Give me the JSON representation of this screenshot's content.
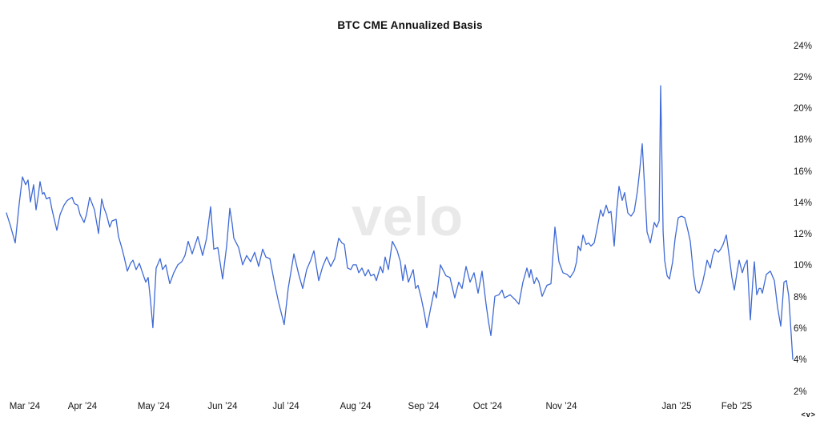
{
  "title": "BTC CME Annualized Basis",
  "watermark": "velo",
  "logo_mark": "<v>",
  "colors": {
    "line": "#3f6ad5",
    "title": "#0d0d0d",
    "axis_label": "#161616",
    "watermark": "#e9e9e9",
    "background": "#ffffff"
  },
  "chart_data": {
    "type": "line",
    "title": "BTC CME Annualized Basis",
    "grid": false,
    "legend": false,
    "y_axis": {
      "unit": "%",
      "min": 2,
      "max": 24,
      "tick_step": 2,
      "side": "right",
      "ticks": [
        {
          "label": "24%",
          "value": 24
        },
        {
          "label": "22%",
          "value": 22
        },
        {
          "label": "20%",
          "value": 20
        },
        {
          "label": "18%",
          "value": 18
        },
        {
          "label": "16%",
          "value": 16
        },
        {
          "label": "14%",
          "value": 14
        },
        {
          "label": "12%",
          "value": 12
        },
        {
          "label": "10%",
          "value": 10
        },
        {
          "label": "8%",
          "value": 8
        },
        {
          "label": "6%",
          "value": 6
        },
        {
          "label": "4%",
          "value": 4
        },
        {
          "label": "2%",
          "value": 2
        }
      ]
    },
    "x_axis": {
      "type": "time",
      "ticks": [
        {
          "label": "Mar ’24",
          "pos": 0.0234
        },
        {
          "label": "Apr ’24",
          "pos": 0.0967
        },
        {
          "label": "May ’24",
          "pos": 0.1874
        },
        {
          "label": "Jun ’24",
          "pos": 0.2749
        },
        {
          "label": "Jul ’24",
          "pos": 0.3554
        },
        {
          "label": "Aug ’24",
          "pos": 0.444
        },
        {
          "label": "Sep ’24",
          "pos": 0.5306
        },
        {
          "label": "Oct ’24",
          "pos": 0.612
        },
        {
          "label": "Nov ’24",
          "pos": 0.7057
        },
        {
          "label": "Jan ’25",
          "pos": 0.8523
        },
        {
          "label": "Feb ’25",
          "pos": 0.9287
        }
      ]
    },
    "series": [
      {
        "name": "BTC CME Annualized Basis",
        "color": "#3f6ad5",
        "points": [
          [
            0.0,
            13.4
          ],
          [
            0.0051,
            12.6
          ],
          [
            0.0112,
            11.5
          ],
          [
            0.0163,
            14.0
          ],
          [
            0.0204,
            15.7
          ],
          [
            0.0244,
            15.2
          ],
          [
            0.0275,
            15.5
          ],
          [
            0.0305,
            14.1
          ],
          [
            0.0346,
            15.2
          ],
          [
            0.0377,
            13.6
          ],
          [
            0.0407,
            14.6
          ],
          [
            0.0428,
            15.4
          ],
          [
            0.0458,
            14.6
          ],
          [
            0.0479,
            14.7
          ],
          [
            0.0509,
            14.3
          ],
          [
            0.055,
            14.4
          ],
          [
            0.058,
            13.6
          ],
          [
            0.0642,
            12.3
          ],
          [
            0.0682,
            13.3
          ],
          [
            0.0733,
            13.9
          ],
          [
            0.0774,
            14.2
          ],
          [
            0.0835,
            14.4
          ],
          [
            0.0866,
            14.0
          ],
          [
            0.0906,
            13.9
          ],
          [
            0.0937,
            13.3
          ],
          [
            0.0988,
            12.8
          ],
          [
            0.1018,
            13.3
          ],
          [
            0.1059,
            14.4
          ],
          [
            0.112,
            13.6
          ],
          [
            0.1171,
            12.1
          ],
          [
            0.1212,
            14.3
          ],
          [
            0.1242,
            13.7
          ],
          [
            0.1273,
            13.3
          ],
          [
            0.1314,
            12.5
          ],
          [
            0.1344,
            12.9
          ],
          [
            0.1395,
            13.0
          ],
          [
            0.1426,
            11.9
          ],
          [
            0.1466,
            11.2
          ],
          [
            0.1497,
            10.6
          ],
          [
            0.1538,
            9.7
          ],
          [
            0.1578,
            10.2
          ],
          [
            0.1609,
            10.4
          ],
          [
            0.165,
            9.8
          ],
          [
            0.169,
            10.2
          ],
          [
            0.1731,
            9.6
          ],
          [
            0.1772,
            9.0
          ],
          [
            0.1802,
            9.3
          ],
          [
            0.1833,
            7.8
          ],
          [
            0.1863,
            6.1
          ],
          [
            0.1904,
            9.9
          ],
          [
            0.1955,
            10.5
          ],
          [
            0.1986,
            9.8
          ],
          [
            0.2026,
            10.1
          ],
          [
            0.2077,
            8.9
          ],
          [
            0.2128,
            9.6
          ],
          [
            0.2179,
            10.1
          ],
          [
            0.223,
            10.3
          ],
          [
            0.2271,
            10.7
          ],
          [
            0.2312,
            11.6
          ],
          [
            0.2363,
            10.8
          ],
          [
            0.2434,
            11.9
          ],
          [
            0.2495,
            10.7
          ],
          [
            0.2546,
            11.8
          ],
          [
            0.2597,
            13.8
          ],
          [
            0.2637,
            11.1
          ],
          [
            0.2688,
            11.2
          ],
          [
            0.2749,
            9.2
          ],
          [
            0.28,
            11.3
          ],
          [
            0.2841,
            13.7
          ],
          [
            0.2872,
            12.7
          ],
          [
            0.2892,
            11.8
          ],
          [
            0.2953,
            11.2
          ],
          [
            0.3004,
            10.1
          ],
          [
            0.3055,
            10.7
          ],
          [
            0.3106,
            10.3
          ],
          [
            0.3157,
            10.9
          ],
          [
            0.3208,
            10.0
          ],
          [
            0.3259,
            11.1
          ],
          [
            0.3299,
            10.6
          ],
          [
            0.335,
            10.5
          ],
          [
            0.3411,
            8.9
          ],
          [
            0.3462,
            7.7
          ],
          [
            0.3533,
            6.3
          ],
          [
            0.3584,
            8.6
          ],
          [
            0.3656,
            10.8
          ],
          [
            0.3717,
            9.5
          ],
          [
            0.3768,
            8.6
          ],
          [
            0.3819,
            9.8
          ],
          [
            0.387,
            10.4
          ],
          [
            0.391,
            11.0
          ],
          [
            0.3971,
            9.1
          ],
          [
            0.4022,
            10.0
          ],
          [
            0.4073,
            10.6
          ],
          [
            0.4124,
            10.0
          ],
          [
            0.4175,
            10.5
          ],
          [
            0.4226,
            11.8
          ],
          [
            0.4267,
            11.5
          ],
          [
            0.4297,
            11.4
          ],
          [
            0.4338,
            9.9
          ],
          [
            0.4379,
            9.8
          ],
          [
            0.4409,
            10.1
          ],
          [
            0.445,
            10.1
          ],
          [
            0.4481,
            9.6
          ],
          [
            0.4521,
            9.9
          ],
          [
            0.4562,
            9.4
          ],
          [
            0.4603,
            9.8
          ],
          [
            0.4633,
            9.4
          ],
          [
            0.4674,
            9.5
          ],
          [
            0.4705,
            9.1
          ],
          [
            0.4756,
            10.0
          ],
          [
            0.4786,
            9.6
          ],
          [
            0.4817,
            10.6
          ],
          [
            0.4857,
            9.8
          ],
          [
            0.4908,
            11.6
          ],
          [
            0.4939,
            11.3
          ],
          [
            0.4969,
            11.0
          ],
          [
            0.501,
            10.3
          ],
          [
            0.5041,
            9.1
          ],
          [
            0.5071,
            10.1
          ],
          [
            0.5112,
            9.0
          ],
          [
            0.5143,
            9.4
          ],
          [
            0.5173,
            9.8
          ],
          [
            0.5204,
            8.6
          ],
          [
            0.5234,
            8.8
          ],
          [
            0.5275,
            8.0
          ],
          [
            0.5316,
            7.0
          ],
          [
            0.5346,
            6.1
          ],
          [
            0.5397,
            7.4
          ],
          [
            0.5438,
            8.4
          ],
          [
            0.5468,
            8.0
          ],
          [
            0.5519,
            10.1
          ],
          [
            0.556,
            9.7
          ],
          [
            0.5591,
            9.4
          ],
          [
            0.5641,
            9.3
          ],
          [
            0.5702,
            8.0
          ],
          [
            0.5753,
            9.0
          ],
          [
            0.5794,
            8.6
          ],
          [
            0.5845,
            10.0
          ],
          [
            0.5896,
            9.0
          ],
          [
            0.5947,
            9.6
          ],
          [
            0.5998,
            8.3
          ],
          [
            0.6049,
            9.7
          ],
          [
            0.61,
            7.6
          ],
          [
            0.613,
            6.5
          ],
          [
            0.6161,
            5.6
          ],
          [
            0.6212,
            8.1
          ],
          [
            0.6263,
            8.2
          ],
          [
            0.6303,
            8.5
          ],
          [
            0.6334,
            8.0
          ],
          [
            0.6405,
            8.2
          ],
          [
            0.6466,
            7.9
          ],
          [
            0.6517,
            7.6
          ],
          [
            0.6568,
            9.0
          ],
          [
            0.6619,
            9.9
          ],
          [
            0.665,
            9.3
          ],
          [
            0.667,
            9.8
          ],
          [
            0.6711,
            8.9
          ],
          [
            0.6741,
            9.3
          ],
          [
            0.6772,
            9.0
          ],
          [
            0.6813,
            8.1
          ],
          [
            0.6874,
            8.8
          ],
          [
            0.6925,
            8.9
          ],
          [
            0.6976,
            12.5
          ],
          [
            0.7026,
            10.3
          ],
          [
            0.7077,
            9.6
          ],
          [
            0.7128,
            9.5
          ],
          [
            0.7169,
            9.3
          ],
          [
            0.722,
            9.7
          ],
          [
            0.7251,
            10.3
          ],
          [
            0.7271,
            11.3
          ],
          [
            0.7301,
            11.0
          ],
          [
            0.7332,
            12.0
          ],
          [
            0.7373,
            11.4
          ],
          [
            0.7403,
            11.5
          ],
          [
            0.7434,
            11.3
          ],
          [
            0.7475,
            11.5
          ],
          [
            0.7515,
            12.5
          ],
          [
            0.7556,
            13.6
          ],
          [
            0.7587,
            13.2
          ],
          [
            0.7627,
            13.9
          ],
          [
            0.7658,
            13.4
          ],
          [
            0.7688,
            13.5
          ],
          [
            0.7729,
            11.3
          ],
          [
            0.776,
            13.5
          ],
          [
            0.779,
            15.1
          ],
          [
            0.7831,
            14.2
          ],
          [
            0.7862,
            14.7
          ],
          [
            0.7902,
            13.4
          ],
          [
            0.7943,
            13.2
          ],
          [
            0.7984,
            13.5
          ],
          [
            0.8024,
            14.8
          ],
          [
            0.8055,
            16.2
          ],
          [
            0.8086,
            17.8
          ],
          [
            0.8116,
            15.0
          ],
          [
            0.8147,
            12.2
          ],
          [
            0.8188,
            11.5
          ],
          [
            0.8239,
            12.8
          ],
          [
            0.8269,
            12.5
          ],
          [
            0.83,
            12.9
          ],
          [
            0.832,
            21.5
          ],
          [
            0.8351,
            12.2
          ],
          [
            0.8371,
            10.4
          ],
          [
            0.8402,
            9.4
          ],
          [
            0.8432,
            9.2
          ],
          [
            0.8473,
            10.3
          ],
          [
            0.8504,
            11.8
          ],
          [
            0.8544,
            13.1
          ],
          [
            0.8585,
            13.2
          ],
          [
            0.8626,
            13.1
          ],
          [
            0.8666,
            12.3
          ],
          [
            0.8697,
            11.6
          ],
          [
            0.8737,
            9.5
          ],
          [
            0.8768,
            8.5
          ],
          [
            0.8809,
            8.3
          ],
          [
            0.8849,
            8.9
          ],
          [
            0.888,
            9.6
          ],
          [
            0.891,
            10.4
          ],
          [
            0.8951,
            9.9
          ],
          [
            0.8982,
            10.7
          ],
          [
            0.9012,
            11.1
          ],
          [
            0.9053,
            10.9
          ],
          [
            0.9084,
            11.1
          ],
          [
            0.9114,
            11.4
          ],
          [
            0.9155,
            12.0
          ],
          [
            0.9196,
            10.5
          ],
          [
            0.9226,
            9.3
          ],
          [
            0.9257,
            8.5
          ],
          [
            0.9287,
            9.5
          ],
          [
            0.9318,
            10.4
          ],
          [
            0.9358,
            9.6
          ],
          [
            0.9389,
            10.1
          ],
          [
            0.942,
            10.4
          ],
          [
            0.946,
            6.6
          ],
          [
            0.9491,
            9.0
          ],
          [
            0.9511,
            10.3
          ],
          [
            0.9542,
            8.2
          ],
          [
            0.9572,
            8.6
          ],
          [
            0.9593,
            8.6
          ],
          [
            0.9613,
            8.3
          ],
          [
            0.9664,
            9.5
          ],
          [
            0.9715,
            9.7
          ],
          [
            0.9766,
            9.1
          ],
          [
            0.9807,
            7.4
          ],
          [
            0.9847,
            6.2
          ],
          [
            0.9888,
            9.0
          ],
          [
            0.9919,
            9.1
          ],
          [
            0.9949,
            8.1
          ],
          [
            0.998,
            5.7
          ],
          [
            1.0,
            4.1
          ]
        ]
      }
    ]
  }
}
